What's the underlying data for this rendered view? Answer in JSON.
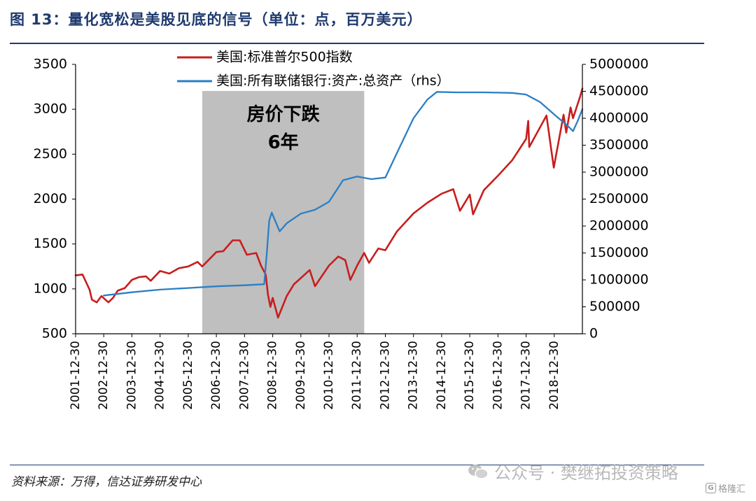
{
  "title": "图 13：量化宽松是美股见底的信号（单位：点，百万美元）",
  "source": "资料来源：万得，信达证券研发中心",
  "watermark": "公众号 · 樊继拓投资策略",
  "logo": "格隆汇",
  "colors": {
    "series_red": "#c81e1e",
    "series_blue": "#2b7fc4",
    "shade": "#bfbfbf",
    "rule": "#1f3a6e"
  },
  "chart_data": {
    "type": "line",
    "x_ticks": [
      "2001-12-30",
      "2002-12-30",
      "2003-12-30",
      "2004-12-30",
      "2005-12-30",
      "2006-12-30",
      "2007-12-30",
      "2008-12-30",
      "2009-12-30",
      "2010-12-30",
      "2011-12-30",
      "2012-12-30",
      "2013-12-30",
      "2014-12-30",
      "2015-12-30",
      "2016-12-30",
      "2017-12-30",
      "2018-12-30"
    ],
    "x_range": [
      "2001-12-30",
      "2019-12-30"
    ],
    "y_left": {
      "min": 500,
      "max": 3500,
      "ticks": [
        "3500",
        "3000",
        "2500",
        "2000",
        "1500",
        "1000",
        "500"
      ]
    },
    "y_right": {
      "min": 0,
      "max": 5000000,
      "ticks": [
        "5000000",
        "4500000",
        "4000000",
        "3500000",
        "3000000",
        "2500000",
        "2000000",
        "1500000",
        "1000000",
        "500000",
        "0"
      ]
    },
    "shaded_region": {
      "start": "2006-06-30",
      "end": "2012-03-31",
      "label_line1": "房价下跌",
      "label_line2": "6年"
    },
    "legend_placement": "top",
    "series": [
      {
        "name": "美国:标准普尔500指数",
        "axis": "left",
        "color": "#c81e1e",
        "points": [
          [
            "2001-12-30",
            1150
          ],
          [
            "2002-03-30",
            1160
          ],
          [
            "2002-06-30",
            990
          ],
          [
            "2002-07-30",
            880
          ],
          [
            "2002-09-30",
            850
          ],
          [
            "2002-11-30",
            920
          ],
          [
            "2003-02-28",
            850
          ],
          [
            "2003-04-30",
            900
          ],
          [
            "2003-06-30",
            980
          ],
          [
            "2003-09-30",
            1010
          ],
          [
            "2003-12-30",
            1100
          ],
          [
            "2004-03-30",
            1130
          ],
          [
            "2004-06-30",
            1140
          ],
          [
            "2004-08-30",
            1090
          ],
          [
            "2004-12-30",
            1200
          ],
          [
            "2005-04-30",
            1170
          ],
          [
            "2005-08-30",
            1230
          ],
          [
            "2005-12-30",
            1250
          ],
          [
            "2006-04-30",
            1300
          ],
          [
            "2006-06-30",
            1250
          ],
          [
            "2006-12-30",
            1410
          ],
          [
            "2007-03-30",
            1420
          ],
          [
            "2007-07-30",
            1540
          ],
          [
            "2007-10-30",
            1540
          ],
          [
            "2008-01-30",
            1380
          ],
          [
            "2008-05-30",
            1400
          ],
          [
            "2008-07-30",
            1260
          ],
          [
            "2008-09-30",
            1160
          ],
          [
            "2008-10-30",
            930
          ],
          [
            "2008-11-30",
            800
          ],
          [
            "2008-12-30",
            900
          ],
          [
            "2009-03-09",
            680
          ],
          [
            "2009-06-30",
            920
          ],
          [
            "2009-09-30",
            1050
          ],
          [
            "2009-12-30",
            1120
          ],
          [
            "2010-04-23",
            1210
          ],
          [
            "2010-07-01",
            1030
          ],
          [
            "2010-12-30",
            1260
          ],
          [
            "2011-04-30",
            1360
          ],
          [
            "2011-07-30",
            1320
          ],
          [
            "2011-10-03",
            1100
          ],
          [
            "2011-12-30",
            1260
          ],
          [
            "2012-03-30",
            1400
          ],
          [
            "2012-06-01",
            1290
          ],
          [
            "2012-09-30",
            1450
          ],
          [
            "2012-12-30",
            1430
          ],
          [
            "2013-05-30",
            1640
          ],
          [
            "2013-12-30",
            1840
          ],
          [
            "2014-06-30",
            1960
          ],
          [
            "2014-12-30",
            2060
          ],
          [
            "2015-05-30",
            2110
          ],
          [
            "2015-08-25",
            1870
          ],
          [
            "2015-12-30",
            2050
          ],
          [
            "2016-02-11",
            1830
          ],
          [
            "2016-06-30",
            2100
          ],
          [
            "2016-12-30",
            2260
          ],
          [
            "2017-06-30",
            2430
          ],
          [
            "2017-12-30",
            2670
          ],
          [
            "2018-01-26",
            2870
          ],
          [
            "2018-02-09",
            2580
          ],
          [
            "2018-09-20",
            2930
          ],
          [
            "2018-12-24",
            2350
          ],
          [
            "2019-04-30",
            2940
          ],
          [
            "2019-06-03",
            2740
          ],
          [
            "2019-07-30",
            3020
          ],
          [
            "2019-08-30",
            2900
          ],
          [
            "2019-11-30",
            3140
          ],
          [
            "2019-12-30",
            3230
          ]
        ]
      },
      {
        "name": "美国:所有联储银行:资产:总资产（rhs）",
        "axis": "right",
        "color": "#2b7fc4",
        "points": [
          [
            "2002-12-30",
            710000
          ],
          [
            "2003-12-30",
            770000
          ],
          [
            "2004-12-30",
            820000
          ],
          [
            "2005-12-30",
            850000
          ],
          [
            "2006-12-30",
            880000
          ],
          [
            "2007-12-30",
            900000
          ],
          [
            "2008-09-10",
            920000
          ],
          [
            "2008-10-15",
            1500000
          ],
          [
            "2008-11-15",
            2100000
          ],
          [
            "2008-12-17",
            2250000
          ],
          [
            "2009-03-30",
            1900000
          ],
          [
            "2009-06-30",
            2050000
          ],
          [
            "2009-12-30",
            2230000
          ],
          [
            "2010-06-30",
            2300000
          ],
          [
            "2010-12-30",
            2450000
          ],
          [
            "2011-06-30",
            2850000
          ],
          [
            "2011-12-30",
            2920000
          ],
          [
            "2012-06-30",
            2870000
          ],
          [
            "2012-12-30",
            2900000
          ],
          [
            "2013-06-30",
            3450000
          ],
          [
            "2013-12-30",
            4000000
          ],
          [
            "2014-06-30",
            4350000
          ],
          [
            "2014-10-30",
            4490000
          ],
          [
            "2015-06-30",
            4480000
          ],
          [
            "2016-06-30",
            4480000
          ],
          [
            "2017-06-30",
            4470000
          ],
          [
            "2017-12-30",
            4440000
          ],
          [
            "2018-06-30",
            4300000
          ],
          [
            "2018-12-30",
            4070000
          ],
          [
            "2019-06-30",
            3850000
          ],
          [
            "2019-08-30",
            3760000
          ],
          [
            "2019-10-30",
            3950000
          ],
          [
            "2019-12-30",
            4170000
          ]
        ]
      }
    ]
  }
}
